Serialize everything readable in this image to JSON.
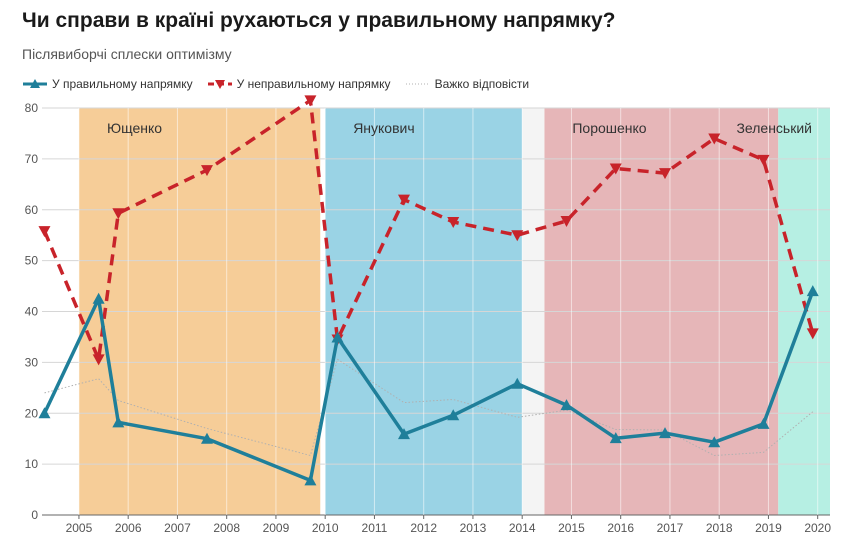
{
  "title": "Чи справи в країні рухаються у правильному напрямку?",
  "subtitle": "Післявиборчі сплески оптимізму",
  "colors": {
    "right": "#1f7f9a",
    "wrong": "#c8232a",
    "hard": "#b0b0b0",
    "yushchenko": "#f6cd98",
    "yanukovych": "#9ad3e5",
    "poroshenko": "#e6b6b8",
    "zelensky": "#b6efe3",
    "gap": "#f4f4f4"
  },
  "chart_data": {
    "type": "line",
    "xlim": [
      2004.25,
      2020.25
    ],
    "ylim": [
      0,
      80
    ],
    "x_ticks": [
      2005,
      2006,
      2007,
      2008,
      2009,
      2010,
      2011,
      2012,
      2013,
      2014,
      2015,
      2016,
      2017,
      2018,
      2019,
      2020
    ],
    "y_ticks": [
      0,
      10,
      20,
      30,
      40,
      50,
      60,
      70,
      80
    ],
    "grid": true,
    "legend_position": "top-left",
    "eras": [
      {
        "label": "Ющенко",
        "start": 2005.0,
        "end": 2009.9,
        "color_key": "yushchenko"
      },
      {
        "label": "Янукович",
        "start": 2010.0,
        "end": 2014.0,
        "color_key": "yanukovych"
      },
      {
        "label": "Порошенко",
        "start": 2014.45,
        "end": 2019.2,
        "color_key": "poroshenko"
      },
      {
        "label": "Зеленський",
        "start": 2019.2,
        "end": 2020.5,
        "color_key": "zelensky"
      }
    ],
    "series": [
      {
        "name": "У правильному напрямку",
        "color_key": "right",
        "style": "solid",
        "marker": "triangle-up",
        "x": [
          2004.3,
          2005.4,
          2005.8,
          2007.6,
          2009.7,
          2010.25,
          2011.6,
          2012.6,
          2013.9,
          2014.9,
          2015.9,
          2016.9,
          2017.9,
          2018.9,
          2019.9
        ],
        "y": [
          20,
          42.5,
          18.2,
          15,
          6.8,
          34.9,
          15.9,
          19.6,
          25.8,
          21.6,
          15.1,
          16.1,
          14.3,
          17.9,
          44
        ]
      },
      {
        "name": "У неправильному напрямку",
        "color_key": "wrong",
        "style": "dashed",
        "marker": "triangle-down",
        "x": [
          2004.3,
          2005.4,
          2005.8,
          2007.6,
          2009.7,
          2010.25,
          2011.6,
          2012.6,
          2013.9,
          2014.9,
          2015.9,
          2016.9,
          2017.9,
          2018.9,
          2019.9
        ],
        "y": [
          55.8,
          30.6,
          59.3,
          67.8,
          81.5,
          34.5,
          62,
          57.6,
          55,
          57.8,
          68.1,
          67.2,
          74,
          69.8,
          35.7
        ]
      },
      {
        "name": "Важко відповісти",
        "color_key": "hard",
        "style": "dotted",
        "marker": "none",
        "x": [
          2004.3,
          2005.4,
          2005.8,
          2007.6,
          2009.7,
          2010.25,
          2011.6,
          2012.6,
          2013.9,
          2014.9,
          2015.9,
          2016.9,
          2017.9,
          2018.9,
          2019.9
        ],
        "y": [
          24,
          26.8,
          22.5,
          17,
          11.7,
          30.6,
          22.1,
          22.7,
          19.2,
          20.6,
          16.8,
          16.7,
          11.7,
          12.3,
          20.3
        ]
      }
    ]
  }
}
